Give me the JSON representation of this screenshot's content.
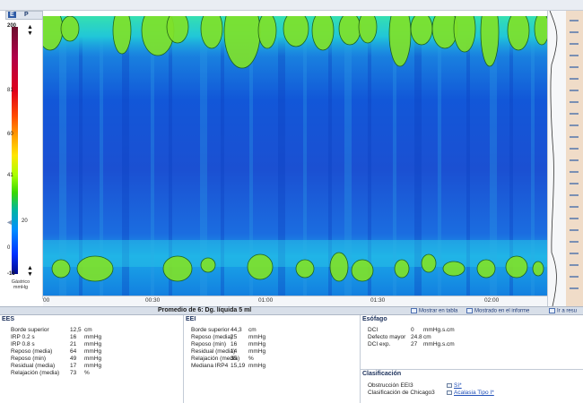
{
  "scale": {
    "tab_e": "E",
    "tab_p": "P",
    "ticks": [
      "200",
      "81",
      "60",
      "41",
      "20",
      "0",
      "-15"
    ],
    "caption": [
      "Gástrico",
      "mmHg"
    ]
  },
  "time_axis": [
    "00",
    "00:30",
    "01:00",
    "01:30",
    "02:00"
  ],
  "info_bar": {
    "title": "Promedio de 6: Dg. líquida 5 ml",
    "btn_table": "Mostrar en tabla",
    "btn_report": "Mostrado en el informe",
    "btn_next": "Ir a resu"
  },
  "ees": {
    "title": "EES",
    "rows": [
      {
        "label": "Borde superior",
        "value": "12,5",
        "unit": "cm"
      },
      {
        "label": "IRP 0.2 s",
        "value": "16",
        "unit": "mmHg"
      },
      {
        "label": "IRP 0.8 s",
        "value": "21",
        "unit": "mmHg"
      },
      {
        "label": "Reposo (media)",
        "value": "64",
        "unit": "mmHg"
      },
      {
        "label": "Reposo (min)",
        "value": "49",
        "unit": "mmHg"
      },
      {
        "label": "Residual (media)",
        "value": "17",
        "unit": "mmHg"
      },
      {
        "label": "Relajación (media)",
        "value": "73",
        "unit": "%"
      }
    ]
  },
  "eei": {
    "title": "EEI",
    "rows": [
      {
        "label": "Borde superior",
        "value": "44,3",
        "unit": "cm"
      },
      {
        "label": "Reposo (media)",
        "value": "25",
        "unit": "mmHg"
      },
      {
        "label": "Reposo (min)",
        "value": "16",
        "unit": "mmHg"
      },
      {
        "label": "Residual (media)",
        "value": "14",
        "unit": "mmHg"
      },
      {
        "label": "Relajación (media)",
        "value": "35",
        "unit": "%"
      },
      {
        "label": "Mediana IRP4",
        "value": "15,19",
        "unit": "mmHg"
      }
    ]
  },
  "esofago": {
    "title": "Esófago",
    "rows": [
      {
        "label": "DCI",
        "value": "0",
        "unit": "mmHg.s.cm"
      },
      {
        "label": "Defecto mayor",
        "value": "24.8",
        "unit": "cm"
      },
      {
        "label": "DCI exp.",
        "value": "27",
        "unit": "mmHg.s.cm"
      }
    ]
  },
  "clasificacion": {
    "title": "Clasificación",
    "rows": [
      {
        "label": "Obstrucción EEI3",
        "value": "Sí*"
      },
      {
        "label": "Clasificación de Chicago3",
        "value": "Acalasia Tipo I*"
      }
    ]
  }
}
